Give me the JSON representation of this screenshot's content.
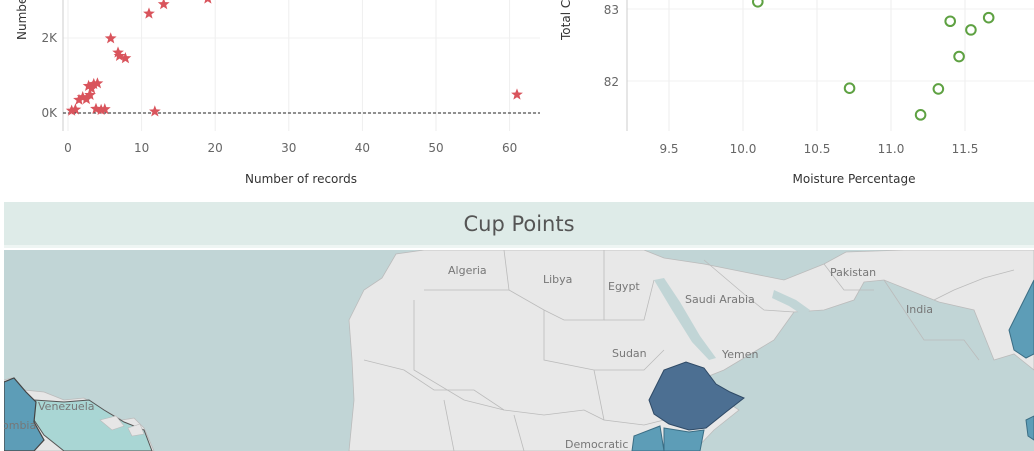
{
  "chart_data": [
    {
      "type": "scatter",
      "xlabel": "Number of records",
      "ylabel": "Numbe",
      "xlim": [
        -2,
        65
      ],
      "x_ticks": [
        "0",
        "10",
        "20",
        "30",
        "40",
        "50",
        "60"
      ],
      "y_ticks": [
        "0K",
        "2K"
      ],
      "marker": "star",
      "color": "#d9545c",
      "reference_line_y": 0,
      "points": [
        {
          "x": 0.5,
          "y": 60
        },
        {
          "x": 1,
          "y": 90
        },
        {
          "x": 1.5,
          "y": 350
        },
        {
          "x": 2,
          "y": 420
        },
        {
          "x": 2.5,
          "y": 370
        },
        {
          "x": 2.8,
          "y": 720
        },
        {
          "x": 3,
          "y": 480
        },
        {
          "x": 3.2,
          "y": 650
        },
        {
          "x": 3.5,
          "y": 770
        },
        {
          "x": 4,
          "y": 790
        },
        {
          "x": 3.8,
          "y": 110
        },
        {
          "x": 4.5,
          "y": 80
        },
        {
          "x": 5,
          "y": 100
        },
        {
          "x": 5.8,
          "y": 1990
        },
        {
          "x": 6.8,
          "y": 1610
        },
        {
          "x": 7,
          "y": 1520
        },
        {
          "x": 7.8,
          "y": 1460
        },
        {
          "x": 11.8,
          "y": 40
        },
        {
          "x": 11,
          "y": 2650
        },
        {
          "x": 13,
          "y": 2900
        },
        {
          "x": 19,
          "y": 3050
        },
        {
          "x": 61,
          "y": 490
        }
      ]
    },
    {
      "type": "scatter",
      "xlabel": "Moisture Percentage",
      "ylabel": "Total C",
      "xlim": [
        9.22,
        11.95
      ],
      "ylim_visible": [
        81.3,
        83.12
      ],
      "x_ticks": [
        "9.5",
        "10.0",
        "10.5",
        "11.0",
        "11.5",
        "1"
      ],
      "y_ticks": [
        "82",
        "83"
      ],
      "marker": "open-circle",
      "color": "#5ea142",
      "points": [
        {
          "x": 10.1,
          "y": 83.1
        },
        {
          "x": 10.72,
          "y": 81.9
        },
        {
          "x": 11.2,
          "y": 81.53
        },
        {
          "x": 11.32,
          "y": 81.89
        },
        {
          "x": 11.4,
          "y": 82.83
        },
        {
          "x": 11.46,
          "y": 82.34
        },
        {
          "x": 11.54,
          "y": 82.71
        },
        {
          "x": 11.66,
          "y": 82.88
        }
      ]
    }
  ],
  "section": {
    "title": "Cup Points"
  },
  "map": {
    "labels": [
      "Algeria",
      "Libya",
      "Egypt",
      "Saudi Arabia",
      "Pakistan",
      "India",
      "Sudan",
      "Yemen",
      "Venezuela",
      "ombia",
      "Democratic"
    ],
    "colors": {
      "ocean": "#c1d5d6",
      "land": "#e8e8e8",
      "ethiopia": "#4c6f92",
      "mid_blue": "#5d9db7",
      "light_blue": "#a9d6d4"
    }
  }
}
